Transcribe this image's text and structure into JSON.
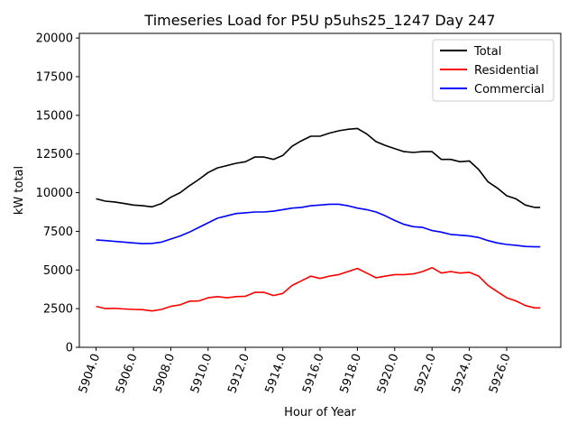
{
  "chart_data": {
    "type": "line",
    "title": "Timeseries Load for P5U p5uhs25_1247  Day 247",
    "xlabel": "Hour of Year",
    "ylabel": "kW total",
    "xlim": [
      5903.1,
      5928.9
    ],
    "ylim": [
      0,
      20300
    ],
    "x_ticks": [
      5904,
      5906,
      5908,
      5910,
      5912,
      5914,
      5916,
      5918,
      5920,
      5922,
      5924,
      5926
    ],
    "x_tick_labels": [
      "5904.0",
      "5906.0",
      "5908.0",
      "5910.0",
      "5912.0",
      "5914.0",
      "5916.0",
      "5918.0",
      "5920.0",
      "5922.0",
      "5924.0",
      "5926.0"
    ],
    "y_ticks": [
      0,
      2500,
      5000,
      7500,
      10000,
      12500,
      15000,
      17500,
      20000
    ],
    "y_tick_labels": [
      "0",
      "2500",
      "5000",
      "7500",
      "10000",
      "12500",
      "15000",
      "17500",
      "20000"
    ],
    "legend_position": "top-right",
    "x": [
      5904.0,
      5904.5,
      5905.0,
      5905.5,
      5906.0,
      5906.5,
      5907.0,
      5907.5,
      5908.0,
      5908.5,
      5909.0,
      5909.5,
      5910.0,
      5910.5,
      5911.0,
      5911.5,
      5912.0,
      5912.5,
      5913.0,
      5913.5,
      5914.0,
      5914.5,
      5915.0,
      5915.5,
      5916.0,
      5916.5,
      5917.0,
      5917.5,
      5918.0,
      5918.5,
      5919.0,
      5919.5,
      5920.0,
      5920.5,
      5921.0,
      5921.5,
      5922.0,
      5922.5,
      5923.0,
      5923.5,
      5924.0,
      5924.5,
      5925.0,
      5925.5,
      5926.0,
      5926.5,
      5927.0,
      5927.5,
      5927.8
    ],
    "series": [
      {
        "name": "Total",
        "color": "#000000",
        "values": [
          9600,
          9450,
          9400,
          9300,
          9200,
          9150,
          9080,
          9300,
          9700,
          10000,
          10450,
          10850,
          11300,
          11600,
          11750,
          11900,
          12000,
          12300,
          12300,
          12150,
          12400,
          13000,
          13350,
          13650,
          13650,
          13850,
          14000,
          14100,
          14150,
          13800,
          13300,
          13050,
          12850,
          12650,
          12600,
          12650,
          12650,
          12150,
          12150,
          12000,
          12050,
          11500,
          10700,
          10300,
          9800,
          9600,
          9200,
          9050,
          9050
        ]
      },
      {
        "name": "Residential",
        "color": "#ff0000",
        "values": [
          2650,
          2500,
          2520,
          2480,
          2450,
          2430,
          2350,
          2450,
          2650,
          2750,
          2980,
          3000,
          3200,
          3280,
          3200,
          3280,
          3300,
          3550,
          3550,
          3350,
          3480,
          4000,
          4300,
          4600,
          4450,
          4600,
          4700,
          4900,
          5100,
          4800,
          4500,
          4600,
          4700,
          4700,
          4750,
          4900,
          5150,
          4800,
          4900,
          4800,
          4850,
          4600,
          4000,
          3600,
          3200,
          3000,
          2700,
          2550,
          2550
        ]
      },
      {
        "name": "Commercial",
        "color": "#0000ff",
        "values": [
          6950,
          6900,
          6850,
          6800,
          6750,
          6700,
          6720,
          6800,
          7000,
          7200,
          7450,
          7750,
          8050,
          8350,
          8500,
          8650,
          8700,
          8750,
          8750,
          8800,
          8900,
          9000,
          9050,
          9150,
          9200,
          9250,
          9250,
          9150,
          9000,
          8900,
          8750,
          8500,
          8200,
          7950,
          7800,
          7750,
          7550,
          7450,
          7300,
          7250,
          7200,
          7100,
          6900,
          6750,
          6650,
          6600,
          6520,
          6500,
          6500
        ]
      }
    ]
  }
}
